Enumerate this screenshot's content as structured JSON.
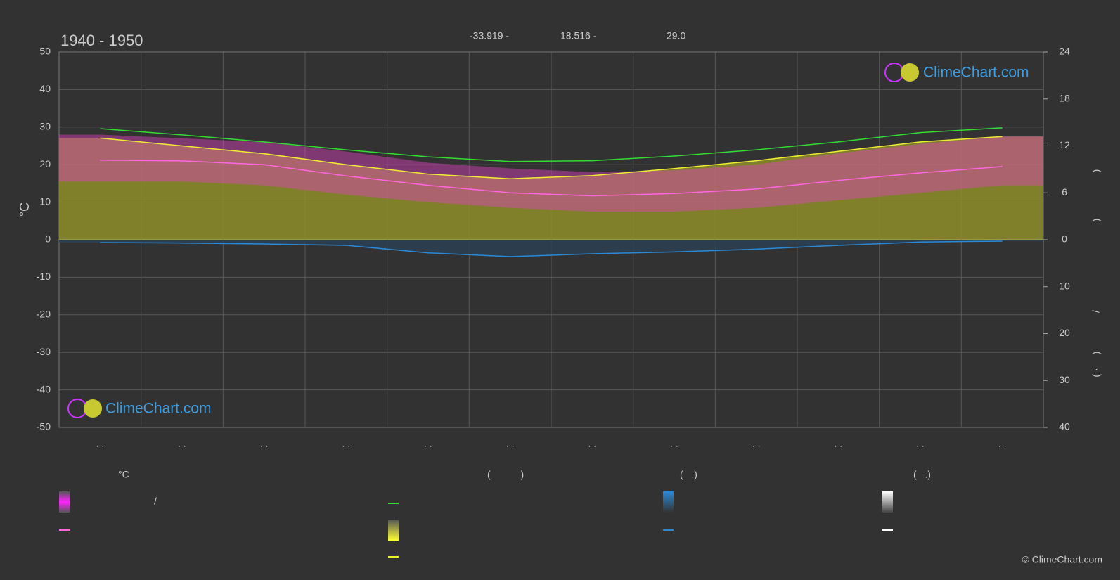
{
  "chart_data": {
    "type": "line",
    "title": "1940 - 1950",
    "location": {
      "latitude": "-33.919 -",
      "longitude": "18.516 -",
      "elevation": "29.0"
    },
    "y_label": "°C",
    "right_axis_fragments": [
      ")",
      ")",
      "/",
      ")",
      "( ·"
    ],
    "categories": [
      ". .",
      ". .",
      ". .",
      ". .",
      ". .",
      ". .",
      ". .",
      ". .",
      ". .",
      ". .",
      ". .",
      ". ."
    ],
    "ylim": [
      -50,
      50
    ],
    "yticks": [
      -50,
      -40,
      -30,
      -20,
      -10,
      0,
      10,
      20,
      30,
      40,
      50
    ],
    "sun_axis": {
      "lim": [
        0,
        24
      ],
      "ticks": [
        0,
        6,
        12,
        18,
        24
      ]
    },
    "rain_axis": {
      "lim": [
        0,
        40
      ],
      "ticks": [
        10,
        20,
        30,
        40
      ]
    },
    "grid": true,
    "band": {
      "color": "#e040c0",
      "high": [
        28,
        27,
        26,
        23.5,
        20.5,
        19,
        18,
        18.5,
        20,
        23,
        25.5,
        27.5
      ],
      "low": [
        15.5,
        15.5,
        14.5,
        12,
        10,
        8.5,
        7.5,
        7.5,
        8.5,
        10.5,
        12.5,
        14.5
      ]
    },
    "series": [
      {
        "color": "#ff66e0",
        "axis": "y",
        "values": [
          21.2,
          21,
          20,
          17,
          14.5,
          12.5,
          11.7,
          12.3,
          13.5,
          15.8,
          17.8,
          19.5
        ]
      },
      {
        "color": "#33dd33",
        "axis": "sun",
        "values": [
          14.2,
          13.4,
          12.5,
          11.5,
          10.6,
          10.0,
          10.1,
          10.7,
          11.5,
          12.5,
          13.7,
          14.3
        ]
      },
      {
        "color": "#eeee33",
        "axis": "sun",
        "fill": "#8e8e2a",
        "values": [
          13.0,
          12.0,
          11.0,
          9.6,
          8.4,
          7.8,
          8.2,
          9.1,
          10.1,
          11.3,
          12.5,
          13.2
        ]
      },
      {
        "color": "#2a8ad8",
        "axis": "rain",
        "fill": "#2b4052",
        "values": [
          0.6,
          0.7,
          0.9,
          1.2,
          2.8,
          3.6,
          3.0,
          2.6,
          2.0,
          1.2,
          0.5,
          0.3
        ]
      }
    ],
    "legend": {
      "headers": [
        "°C",
        "(           )",
        "(   .)",
        "(   .)"
      ],
      "slash": "/"
    },
    "logo": "ClimeChart.com",
    "copyright": "© ClimeChart.com"
  }
}
